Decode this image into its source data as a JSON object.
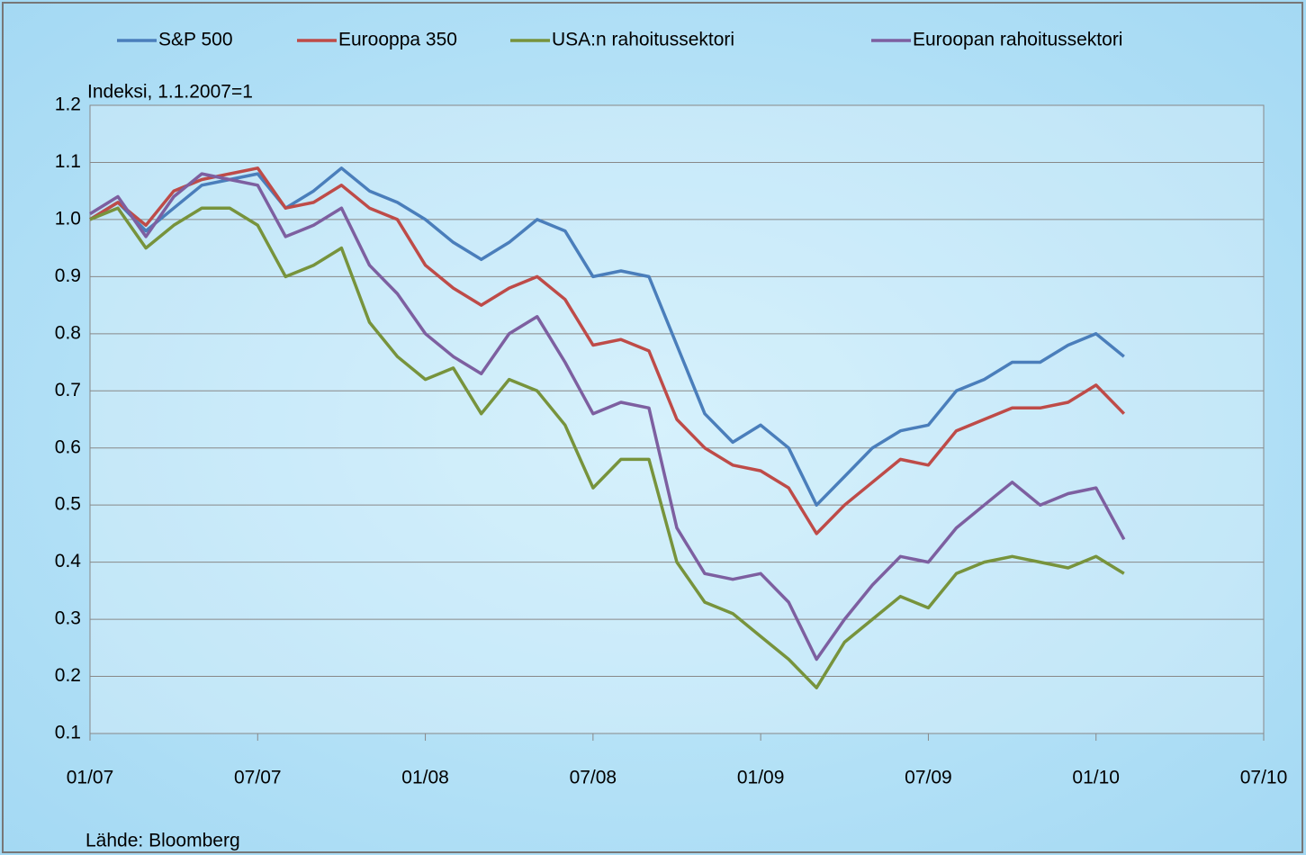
{
  "chart_data": {
    "type": "line",
    "y_axis_label": "Indeksi, 1.1.2007=1",
    "source": "Lähde: Bloomberg",
    "x": [
      "2007-01",
      "2007-02",
      "2007-03",
      "2007-04",
      "2007-05",
      "2007-06",
      "2007-07",
      "2007-08",
      "2007-09",
      "2007-10",
      "2007-11",
      "2007-12",
      "2008-01",
      "2008-02",
      "2008-03",
      "2008-04",
      "2008-05",
      "2008-06",
      "2008-07",
      "2008-08",
      "2008-09",
      "2008-10",
      "2008-11",
      "2008-12",
      "2009-01",
      "2009-02",
      "2009-03",
      "2009-04",
      "2009-05",
      "2009-06",
      "2009-07",
      "2009-08",
      "2009-09",
      "2009-10",
      "2009-11",
      "2009-12",
      "2010-01",
      "2010-02"
    ],
    "series": [
      {
        "name": "S&P 500",
        "color": "#4a7ebb",
        "values": [
          1.0,
          1.03,
          0.98,
          1.02,
          1.06,
          1.07,
          1.08,
          1.02,
          1.05,
          1.09,
          1.05,
          1.03,
          1.0,
          0.96,
          0.93,
          0.96,
          1.0,
          0.98,
          0.9,
          0.91,
          0.9,
          0.78,
          0.66,
          0.61,
          0.64,
          0.6,
          0.5,
          0.55,
          0.6,
          0.63,
          0.64,
          0.7,
          0.72,
          0.75,
          0.75,
          0.78,
          0.8,
          0.76
        ]
      },
      {
        "name": "Eurooppa 350",
        "color": "#be4b48",
        "values": [
          1.0,
          1.03,
          0.99,
          1.05,
          1.07,
          1.08,
          1.09,
          1.02,
          1.03,
          1.06,
          1.02,
          1.0,
          0.92,
          0.88,
          0.85,
          0.88,
          0.9,
          0.86,
          0.78,
          0.79,
          0.77,
          0.65,
          0.6,
          0.57,
          0.56,
          0.53,
          0.45,
          0.5,
          0.54,
          0.58,
          0.57,
          0.63,
          0.65,
          0.67,
          0.67,
          0.68,
          0.71,
          0.66
        ]
      },
      {
        "name": "USA:n rahoitussektori",
        "color": "#77933c",
        "values": [
          1.0,
          1.02,
          0.95,
          0.99,
          1.02,
          1.02,
          0.99,
          0.9,
          0.92,
          0.95,
          0.82,
          0.76,
          0.72,
          0.74,
          0.66,
          0.72,
          0.7,
          0.64,
          0.53,
          0.58,
          0.58,
          0.4,
          0.33,
          0.31,
          0.27,
          0.23,
          0.18,
          0.26,
          0.3,
          0.34,
          0.32,
          0.38,
          0.4,
          0.41,
          0.4,
          0.39,
          0.41,
          0.38
        ]
      },
      {
        "name": "Euroopan rahoitussektori",
        "color": "#7d5fa0",
        "values": [
          1.01,
          1.04,
          0.97,
          1.04,
          1.08,
          1.07,
          1.06,
          0.97,
          0.99,
          1.02,
          0.92,
          0.87,
          0.8,
          0.76,
          0.73,
          0.8,
          0.83,
          0.75,
          0.66,
          0.68,
          0.67,
          0.46,
          0.38,
          0.37,
          0.38,
          0.33,
          0.23,
          0.3,
          0.36,
          0.41,
          0.4,
          0.46,
          0.5,
          0.54,
          0.5,
          0.52,
          0.53,
          0.44
        ]
      }
    ],
    "xlim": [
      "2007-01",
      "2010-07"
    ],
    "xticks": [
      {
        "value": "2007-01",
        "label": "01/07"
      },
      {
        "value": "2007-07",
        "label": "07/07"
      },
      {
        "value": "2008-01",
        "label": "01/08"
      },
      {
        "value": "2008-07",
        "label": "07/08"
      },
      {
        "value": "2009-01",
        "label": "01/09"
      },
      {
        "value": "2009-07",
        "label": "07/09"
      },
      {
        "value": "2010-01",
        "label": "01/10"
      },
      {
        "value": "2010-07",
        "label": "07/10"
      }
    ],
    "ylim": [
      0.1,
      1.2
    ],
    "yticks": [
      0.1,
      0.2,
      0.3,
      0.4,
      0.5,
      0.6,
      0.7,
      0.8,
      0.9,
      {
        "value": 1,
        "label": "1.0"
      },
      1.1,
      1.2
    ],
    "grid": true
  }
}
